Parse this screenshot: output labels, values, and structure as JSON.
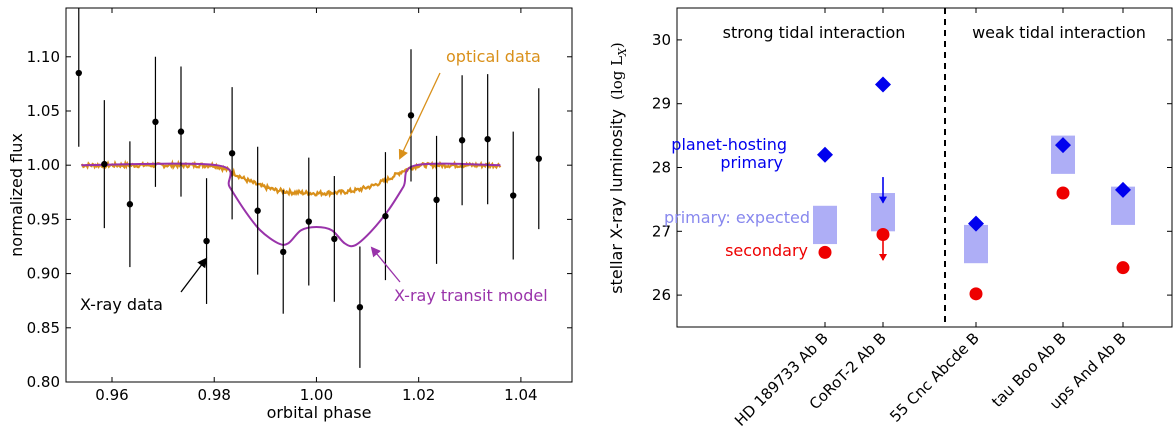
{
  "chart_data": [
    {
      "type": "scatter",
      "xlabel": "orbital phase",
      "ylabel": "normalized flux",
      "xlim": [
        0.951,
        1.05
      ],
      "ylim": [
        0.8,
        1.145
      ],
      "x_ticks": [
        0.96,
        0.98,
        1.0,
        1.02,
        1.04
      ],
      "x_tick_labels": [
        "0.96",
        "0.98",
        "1.00",
        "1.02",
        "1.04"
      ],
      "y_ticks": [
        0.8,
        0.85,
        0.9,
        0.95,
        1.0,
        1.05,
        1.1
      ],
      "y_tick_labels": [
        "0.80",
        "0.85",
        "0.90",
        "0.95",
        "1.00",
        "1.05",
        "1.10"
      ],
      "grid": false,
      "colors": {
        "optical": "#d9901a",
        "model": "#9933aa",
        "xray": "#000000"
      },
      "xray_points": [
        {
          "x": 0.9535,
          "y": 1.085,
          "err": 0.068
        },
        {
          "x": 0.9585,
          "y": 1.001,
          "err": 0.059
        },
        {
          "x": 0.9635,
          "y": 0.964,
          "err": 0.058
        },
        {
          "x": 0.9685,
          "y": 1.04,
          "err": 0.06
        },
        {
          "x": 0.9735,
          "y": 1.031,
          "err": 0.06
        },
        {
          "x": 0.9785,
          "y": 0.93,
          "err": 0.058
        },
        {
          "x": 0.9835,
          "y": 1.011,
          "err": 0.061
        },
        {
          "x": 0.9885,
          "y": 0.958,
          "err": 0.059
        },
        {
          "x": 0.9935,
          "y": 0.92,
          "err": 0.057
        },
        {
          "x": 0.9985,
          "y": 0.948,
          "err": 0.059
        },
        {
          "x": 1.0035,
          "y": 0.932,
          "err": 0.058
        },
        {
          "x": 1.0085,
          "y": 0.869,
          "err": 0.056
        },
        {
          "x": 1.0135,
          "y": 0.953,
          "err": 0.059
        },
        {
          "x": 1.0185,
          "y": 1.046,
          "err": 0.061
        },
        {
          "x": 1.0235,
          "y": 0.968,
          "err": 0.059
        },
        {
          "x": 1.0285,
          "y": 1.023,
          "err": 0.06
        },
        {
          "x": 1.0335,
          "y": 1.024,
          "err": 0.06
        },
        {
          "x": 1.0385,
          "y": 0.972,
          "err": 0.059
        },
        {
          "x": 1.0435,
          "y": 1.006,
          "err": 0.065
        }
      ],
      "optical_data": {
        "x": [
          0.954,
          0.98,
          0.983,
          0.986,
          0.989,
          0.992,
          0.995,
          1.0,
          1.005,
          1.008,
          1.011,
          1.014,
          1.017,
          1.02,
          1.036
        ],
        "y": [
          1.0,
          1.0,
          0.995,
          0.987,
          0.981,
          0.977,
          0.975,
          0.974,
          0.975,
          0.977,
          0.981,
          0.987,
          0.995,
          1.0,
          1.0
        ]
      },
      "xray_transit_model": {
        "x": [
          0.954,
          0.9805,
          0.983,
          0.986,
          0.989,
          0.9925,
          0.9945,
          0.997,
          1.0,
          1.003,
          1.0055,
          1.0075,
          1.0105,
          1.014,
          1.017,
          1.0195,
          1.036
        ],
        "y": [
          1.0,
          1.0,
          0.98,
          0.958,
          0.94,
          0.928,
          0.928,
          0.94,
          0.943,
          0.94,
          0.928,
          0.926,
          0.938,
          0.958,
          0.98,
          1.0,
          1.0
        ]
      },
      "annotations": [
        {
          "text": "optical data"
        },
        {
          "text": "X-ray data"
        },
        {
          "text": "X-ray transit model"
        }
      ]
    },
    {
      "type": "scatter",
      "xlabel": "",
      "ylabel": "stellar X-ray luminosity",
      "ylabel_math": "(log L",
      "ylabel_sub": "X",
      "ylabel_close": ")",
      "ylim": [
        25.5,
        30.5
      ],
      "y_ticks": [
        26,
        27,
        28,
        29,
        30
      ],
      "y_tick_labels": [
        "26",
        "27",
        "28",
        "29",
        "30"
      ],
      "categories": [
        "HD 189733 Ab B",
        "CoRoT-2 Ab B",
        "55 Cnc Abcde B",
        "tau Boo Ab B",
        "ups And Ab B"
      ],
      "grid": false,
      "colors": {
        "primary": "#0000ee",
        "expected": "#aeaef6",
        "secondary": "#ee0000"
      },
      "region_labels": [
        "strong tidal interaction",
        "weak tidal interaction"
      ],
      "divider_after_category": 1,
      "primary": [
        28.2,
        29.3,
        27.12,
        28.35,
        27.65
      ],
      "expected_range": [
        [
          26.8,
          27.4
        ],
        [
          27.0,
          27.6
        ],
        [
          26.5,
          27.1
        ],
        [
          27.9,
          28.5
        ],
        [
          27.1,
          27.7
        ]
      ],
      "secondary": [
        26.67,
        26.95,
        26.02,
        27.6,
        26.43
      ],
      "upper_limits": [
        {
          "category": 1,
          "series": "primary",
          "from": 27.85,
          "to": 27.45
        },
        {
          "category": 1,
          "series": "secondary",
          "from": 26.95,
          "to": 26.55
        }
      ],
      "legend_labels": {
        "primary_line1": "planet-hosting",
        "primary_line2": "primary",
        "expected": "primary: expected",
        "secondary": "secondary"
      }
    }
  ]
}
